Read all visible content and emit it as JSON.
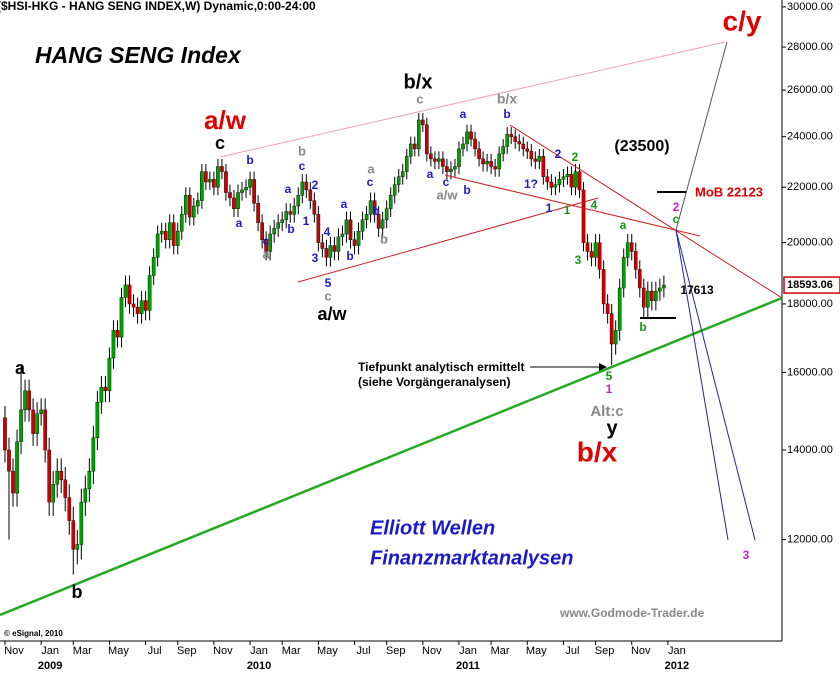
{
  "chart_data": {
    "type": "candlestick",
    "title": "($HSI-HKG - HANG SENG INDEX,W) Dynamic,0:00-24:00",
    "heading": "HANG SENG Index",
    "log_scale": true,
    "up_color": "#00a000",
    "down_color": "#d00000",
    "ylim": [
      10080,
      30360
    ],
    "yticks": [
      {
        "value": 12000,
        "label": "12000.00"
      },
      {
        "value": 14000,
        "label": "14000.00"
      },
      {
        "value": 16000,
        "label": "16000.00"
      },
      {
        "value": 18000,
        "label": "18000.00"
      },
      {
        "value": 20000,
        "label": "20000.00"
      },
      {
        "value": 22000,
        "label": "22000.00"
      },
      {
        "value": 24000,
        "label": "24000.00"
      },
      {
        "value": 26000,
        "label": "26000.00"
      },
      {
        "value": 28000,
        "label": "28000.00"
      },
      {
        "value": 30000,
        "label": "30000.00"
      }
    ],
    "xlim": [
      -1.24,
      193.4
    ],
    "xticks": [
      {
        "value": 0,
        "label": "Nov"
      },
      {
        "value": 9,
        "label": "Jan"
      },
      {
        "value": 17,
        "label": "Mar"
      },
      {
        "value": 26,
        "label": "May"
      },
      {
        "value": 35,
        "label": "Jul"
      },
      {
        "value": 43,
        "label": "Sep"
      },
      {
        "value": 52,
        "label": "Nov"
      },
      {
        "value": 61,
        "label": "Jan"
      },
      {
        "value": 69,
        "label": "Mar"
      },
      {
        "value": 78,
        "label": "May"
      },
      {
        "value": 87,
        "label": "Jul"
      },
      {
        "value": 95,
        "label": "Sep"
      },
      {
        "value": 104,
        "label": "Nov"
      },
      {
        "value": 113,
        "label": "Jan"
      },
      {
        "value": 121,
        "label": "Mar"
      },
      {
        "value": 130,
        "label": "May"
      },
      {
        "value": 139,
        "label": "Jul"
      },
      {
        "value": 147,
        "label": "Sep"
      },
      {
        "value": 156,
        "label": "Nov"
      },
      {
        "value": 165,
        "label": "Jan"
      }
    ],
    "years": [
      {
        "value": 9,
        "label": "2009"
      },
      {
        "value": 61,
        "label": "2010"
      },
      {
        "value": 113,
        "label": "2011"
      },
      {
        "value": 165,
        "label": "2012"
      }
    ],
    "last_price": {
      "value": 18593.06,
      "label": "18593.06"
    },
    "candles": [
      [
        14800,
        15100,
        13700,
        14000
      ],
      [
        14000,
        14300,
        12000,
        13500
      ],
      [
        13500,
        13800,
        12700,
        13000
      ],
      [
        13000,
        14500,
        12700,
        14200
      ],
      [
        14200,
        16200,
        13900,
        15000
      ],
      [
        15000,
        15800,
        14700,
        15500
      ],
      [
        15500,
        15800,
        14700,
        15000
      ],
      [
        15000,
        15300,
        14100,
        14400
      ],
      [
        14400,
        15200,
        14100,
        14900
      ],
      [
        14900,
        15300,
        14600,
        15000
      ],
      [
        15000,
        15300,
        13700,
        14000
      ],
      [
        14000,
        14300,
        12500,
        12800
      ],
      [
        12800,
        13500,
        12500,
        13200
      ],
      [
        13200,
        13800,
        12900,
        13500
      ],
      [
        13500,
        13800,
        13000,
        13300
      ],
      [
        13300,
        13600,
        12600,
        12900
      ],
      [
        12900,
        13200,
        12100,
        12400
      ],
      [
        12400,
        12700,
        11300,
        11800
      ],
      [
        11800,
        12200,
        11500,
        11900
      ],
      [
        11900,
        13100,
        11600,
        12800
      ],
      [
        12800,
        13400,
        12500,
        13100
      ],
      [
        13100,
        13800,
        12800,
        13500
      ],
      [
        13500,
        14600,
        13200,
        14300
      ],
      [
        14300,
        15500,
        14000,
        15200
      ],
      [
        15200,
        15900,
        14900,
        15600
      ],
      [
        15600,
        15900,
        15200,
        15500
      ],
      [
        15500,
        16700,
        15200,
        16400
      ],
      [
        16400,
        17500,
        16100,
        17200
      ],
      [
        17200,
        17500,
        16700,
        17000
      ],
      [
        17000,
        18500,
        16700,
        18200
      ],
      [
        18200,
        18900,
        17900,
        18600
      ],
      [
        18600,
        18900,
        17700,
        18000
      ],
      [
        18000,
        18300,
        17600,
        17900
      ],
      [
        17900,
        18200,
        17400,
        17700
      ],
      [
        17700,
        18400,
        17400,
        18100
      ],
      [
        18100,
        18400,
        17500,
        17800
      ],
      [
        17800,
        19200,
        17500,
        18900
      ],
      [
        18900,
        19800,
        18600,
        19500
      ],
      [
        19500,
        20600,
        19200,
        20300
      ],
      [
        20300,
        20700,
        20000,
        20400
      ],
      [
        20400,
        20700,
        19800,
        20100
      ],
      [
        20100,
        21000,
        19800,
        20700
      ],
      [
        20700,
        21000,
        19600,
        19900
      ],
      [
        19900,
        20700,
        19600,
        20400
      ],
      [
        20400,
        21300,
        20100,
        21000
      ],
      [
        21000,
        22000,
        20700,
        21700
      ],
      [
        21700,
        22000,
        20600,
        20900
      ],
      [
        20900,
        21600,
        20600,
        21300
      ],
      [
        21300,
        21800,
        21000,
        21500
      ],
      [
        21500,
        22900,
        21200,
        22600
      ],
      [
        22600,
        22900,
        21900,
        22200
      ],
      [
        22200,
        22600,
        21900,
        22300
      ],
      [
        22300,
        22600,
        21700,
        22000
      ],
      [
        22000,
        23100,
        21700,
        22800
      ],
      [
        22800,
        23100,
        22300,
        22600
      ],
      [
        22600,
        22900,
        21500,
        21800
      ],
      [
        21800,
        22100,
        21300,
        21600
      ],
      [
        21600,
        21900,
        20900,
        21200
      ],
      [
        21200,
        22100,
        20900,
        21800
      ],
      [
        21800,
        22200,
        21500,
        21900
      ],
      [
        21900,
        22300,
        21600,
        22000
      ],
      [
        22000,
        22600,
        21700,
        22300
      ],
      [
        22300,
        22600,
        21100,
        21400
      ],
      [
        21400,
        21700,
        20400,
        20700
      ],
      [
        20700,
        21000,
        19800,
        20100
      ],
      [
        20100,
        20400,
        19400,
        19700
      ],
      [
        19700,
        20600,
        19400,
        20300
      ],
      [
        20300,
        20800,
        20000,
        20500
      ],
      [
        20500,
        21000,
        20200,
        20700
      ],
      [
        20700,
        21100,
        20400,
        20800
      ],
      [
        20800,
        21400,
        20500,
        21100
      ],
      [
        21100,
        21400,
        20700,
        21000
      ],
      [
        21000,
        21600,
        20700,
        21300
      ],
      [
        21300,
        22000,
        21000,
        21700
      ],
      [
        21700,
        22500,
        21400,
        22200
      ],
      [
        22200,
        22500,
        21600,
        21900
      ],
      [
        21900,
        22200,
        21200,
        21500
      ],
      [
        21500,
        21800,
        20700,
        21000
      ],
      [
        21000,
        21300,
        19700,
        20000
      ],
      [
        20000,
        20300,
        19500,
        19800
      ],
      [
        19800,
        20100,
        19200,
        19500
      ],
      [
        19500,
        20200,
        19200,
        19900
      ],
      [
        19900,
        20200,
        19400,
        19700
      ],
      [
        19700,
        20500,
        19400,
        20200
      ],
      [
        20200,
        20600,
        19900,
        20300
      ],
      [
        20300,
        21100,
        20000,
        20800
      ],
      [
        20800,
        21100,
        19800,
        20100
      ],
      [
        20100,
        20400,
        19600,
        19900
      ],
      [
        19900,
        20700,
        19600,
        20400
      ],
      [
        20400,
        21100,
        20100,
        20800
      ],
      [
        20800,
        21300,
        20500,
        21000
      ],
      [
        21000,
        21800,
        20700,
        21500
      ],
      [
        21500,
        21800,
        20700,
        21000
      ],
      [
        21000,
        21300,
        20200,
        20500
      ],
      [
        20500,
        21100,
        20200,
        20800
      ],
      [
        20800,
        21500,
        20500,
        21200
      ],
      [
        21200,
        22000,
        20900,
        21700
      ],
      [
        21700,
        22400,
        21400,
        22100
      ],
      [
        22100,
        22700,
        21800,
        22400
      ],
      [
        22400,
        22900,
        22100,
        22600
      ],
      [
        22600,
        23500,
        22300,
        23200
      ],
      [
        23200,
        24000,
        22900,
        23700
      ],
      [
        23700,
        24000,
        23200,
        23500
      ],
      [
        23500,
        25000,
        23200,
        24700
      ],
      [
        24700,
        25000,
        24200,
        24500
      ],
      [
        24500,
        24800,
        23000,
        23300
      ],
      [
        23300,
        23600,
        22800,
        23100
      ],
      [
        23100,
        23400,
        22700,
        23000
      ],
      [
        23000,
        23400,
        22700,
        23100
      ],
      [
        23100,
        23400,
        22500,
        22800
      ],
      [
        22800,
        23100,
        22300,
        22600
      ],
      [
        22600,
        23000,
        22300,
        22700
      ],
      [
        22700,
        23100,
        22400,
        22800
      ],
      [
        22800,
        23800,
        22500,
        23500
      ],
      [
        23500,
        24000,
        23200,
        23700
      ],
      [
        23700,
        24500,
        23400,
        24200
      ],
      [
        24200,
        24500,
        23600,
        23900
      ],
      [
        23900,
        24200,
        23200,
        23500
      ],
      [
        23500,
        23800,
        22800,
        23100
      ],
      [
        23100,
        23400,
        22600,
        22900
      ],
      [
        22900,
        23300,
        22600,
        23000
      ],
      [
        23000,
        23300,
        22500,
        22800
      ],
      [
        22800,
        23100,
        22400,
        22700
      ],
      [
        22700,
        23600,
        22400,
        23300
      ],
      [
        23300,
        23900,
        23000,
        23600
      ],
      [
        23600,
        24400,
        23300,
        24100
      ],
      [
        24100,
        24400,
        23700,
        24000
      ],
      [
        24000,
        24300,
        23500,
        23800
      ],
      [
        23800,
        24100,
        23400,
        23700
      ],
      [
        23700,
        24000,
        23200,
        23500
      ],
      [
        23500,
        23800,
        23100,
        23400
      ],
      [
        23400,
        23700,
        22800,
        23100
      ],
      [
        23100,
        23400,
        22700,
        23000
      ],
      [
        23000,
        23500,
        22700,
        23200
      ],
      [
        23200,
        23500,
        22100,
        22400
      ],
      [
        22400,
        22700,
        21900,
        22200
      ],
      [
        22200,
        22500,
        21700,
        22000
      ],
      [
        22000,
        22400,
        21700,
        22100
      ],
      [
        22100,
        22600,
        21800,
        22300
      ],
      [
        22300,
        22700,
        22000,
        22400
      ],
      [
        22400,
        22800,
        22100,
        22500
      ],
      [
        22500,
        22800,
        21700,
        22000
      ],
      [
        22000,
        22900,
        21700,
        22600
      ],
      [
        22600,
        22900,
        21600,
        21900
      ],
      [
        21900,
        22200,
        19700,
        20000
      ],
      [
        20000,
        20300,
        19400,
        19700
      ],
      [
        19700,
        20000,
        19200,
        19500
      ],
      [
        19500,
        20300,
        19200,
        20000
      ],
      [
        20000,
        20300,
        18800,
        19100
      ],
      [
        19100,
        19400,
        17700,
        18000
      ],
      [
        18000,
        18300,
        17400,
        17700
      ],
      [
        17700,
        18000,
        16200,
        16800
      ],
      [
        16800,
        17500,
        16500,
        17200
      ],
      [
        17200,
        18800,
        16900,
        18500
      ],
      [
        18500,
        19800,
        18200,
        19500
      ],
      [
        19500,
        20300,
        19200,
        20000
      ],
      [
        20000,
        20300,
        19400,
        19700
      ],
      [
        19700,
        20000,
        18800,
        19100
      ],
      [
        19100,
        19400,
        18200,
        18500
      ],
      [
        18500,
        18800,
        17600,
        17900
      ],
      [
        17900,
        18700,
        17600,
        18400
      ],
      [
        18400,
        18700,
        17800,
        18100
      ],
      [
        18100,
        18700,
        17800,
        18400
      ],
      [
        18400,
        18800,
        18100,
        18500
      ],
      [
        18500,
        18900,
        18200,
        18593.06
      ]
    ],
    "labels": [
      "a/w",
      "c",
      "b",
      "a",
      "c",
      "a",
      "a",
      "b",
      "b",
      "c",
      "2",
      "1",
      "3",
      "4",
      "5",
      "c",
      "a/w",
      "b",
      "a",
      "c",
      "a",
      "b",
      "b",
      "b/x",
      "c",
      "a",
      "a",
      "c",
      "a/w",
      "b",
      "b/x",
      "b",
      "1?",
      "2",
      "2",
      "1",
      "1",
      "4",
      "3",
      "(23500)",
      "c/y",
      "MoB 22123",
      "2",
      "c",
      "a",
      "b",
      "17613",
      "Tiefpunkt analytisch ermittelt",
      "(siehe Vorgängeranalysen)",
      "5",
      "1",
      "Alt:c",
      "y",
      "b/x",
      "a",
      "b",
      "3",
      "Elliott Wellen",
      "Finanzmarktanalysen",
      "www.Godmode-Trader.de",
      "© eSignal, 2010"
    ]
  }
}
